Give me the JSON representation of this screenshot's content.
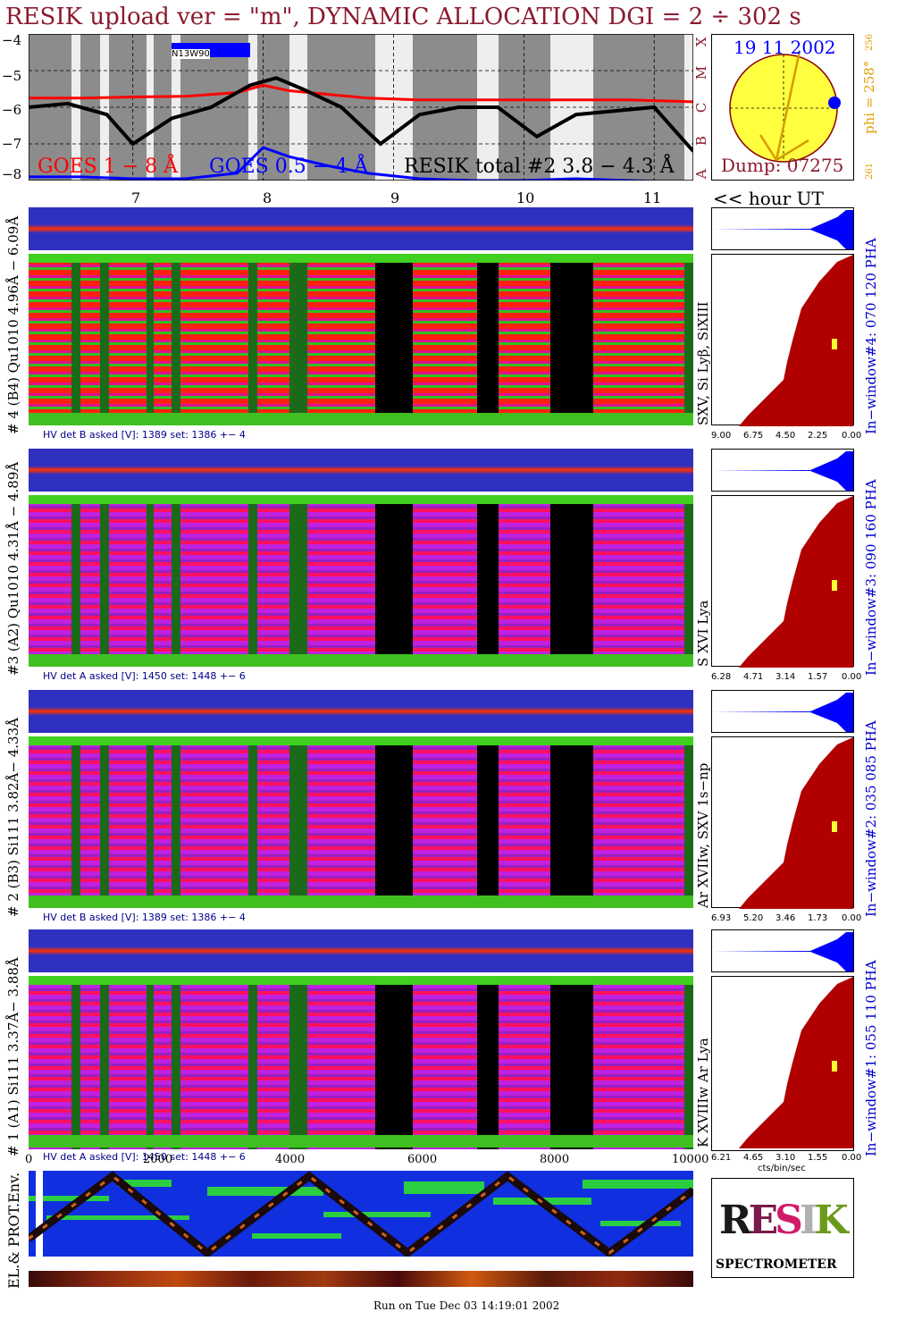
{
  "title": "RESIK upload ver = \"m\", DYNAMIC ALLOCATION  DGI =   2 ÷ 302 s",
  "goes": {
    "yticks": [
      "−4",
      "−5",
      "−6",
      "−7",
      "−8"
    ],
    "legend_goes1": "GOES 1 − 8 Å",
    "legend_goes05": "GOES 0.5 − 4 Å",
    "legend_resik": "RESIK total #2  3.8 − 4.3 Å",
    "noaa_label": "N13W90",
    "flare_classes": [
      "X",
      "M",
      "C",
      "B",
      "A"
    ],
    "hour_labels": [
      "7",
      "8",
      "9",
      "10",
      "11"
    ],
    "hour_ut": "<< hour UT"
  },
  "sun": {
    "date": "19 11 2002",
    "phi": "phi = 258°",
    "phi_top": "256",
    "phi_bottom": "261",
    "dump": "Dump: 07275"
  },
  "panels": [
    {
      "id": "4",
      "label": "# 4 (B4) Qu1010 4.96Å − 6.09Å",
      "lines": "SXV, Si Lyβ, SiXIII",
      "window": "In−window#4:  070 120 PHA",
      "hv": "HV det B asked [V]:  1389 set:  1386 +−   4",
      "pha_ticks": [
        "9.00",
        "6.75",
        "4.50",
        "2.25",
        "0.00"
      ]
    },
    {
      "id": "3",
      "label": "#3 (A2) Qu1010  4.31Å − 4.89Å",
      "lines": "S XVI Lya",
      "window": "In−window#3:  090 160 PHA",
      "hv": "HV det A asked [V]:  1450 set:  1448 +−   6",
      "pha_ticks": [
        "6.28",
        "4.71",
        "3.14",
        "1.57",
        "0.00"
      ]
    },
    {
      "id": "2",
      "label": "# 2 (B3) Si111  3.82Å− 4.33Å",
      "lines": "Ar XVIIw,  SXV 1s−np",
      "window": "In−window#2:  035 085 PHA",
      "hv": "HV det B asked [V]:  1389 set:  1386 +−   4",
      "pha_ticks": [
        "6.93",
        "5.20",
        "3.46",
        "1.73",
        "0.00"
      ]
    },
    {
      "id": "1",
      "label": "# 1 (A1) Si111  3.37Å− 3.88Å",
      "lines": "K XVIIIw  Ar Lya",
      "window": "In−window#1:  055 110 PHA",
      "hv": "HV det A asked [V]:  1450 set:  1448 +−   6",
      "pha_ticks": [
        "6.21",
        "4.65",
        "3.10",
        "1.55",
        "0.00"
      ]
    }
  ],
  "bottom": {
    "xticks": [
      "0",
      "2000",
      "4000",
      "6000",
      "8000",
      "10000"
    ],
    "cts_label": "cts/bin/sec",
    "env_label": "EL.& PROT.Env.",
    "logo_title": "SPECTROMETER",
    "logo_letters": "RESIK",
    "run_on": "Run on Tue Dec 03 14:19:01 2002"
  },
  "chart_data": {
    "type": "line",
    "title": "RESIK upload ver = \"m\", DYNAMIC ALLOCATION  DGI =   2 ÷ 302 s",
    "xlabel": "hour UT",
    "ylabel": "",
    "xlim": [
      6.2,
      11.3
    ],
    "ylim": [
      -8,
      -4
    ],
    "series": [
      {
        "name": "GOES 1 − 8 Å",
        "color": "#ff0000",
        "x": [
          6.2,
          6.6,
          7.0,
          7.4,
          7.8,
          8.0,
          8.2,
          8.5,
          8.8,
          9.2,
          9.6,
          10.0,
          10.4,
          10.8,
          11.3
        ],
        "y": [
          -5.75,
          -5.75,
          -5.72,
          -5.7,
          -5.6,
          -5.4,
          -5.55,
          -5.65,
          -5.75,
          -5.8,
          -5.8,
          -5.8,
          -5.8,
          -5.8,
          -5.85
        ]
      },
      {
        "name": "GOES 0.5 − 4 Å",
        "color": "#0000ff",
        "x": [
          6.2,
          6.6,
          7.0,
          7.4,
          7.8,
          8.0,
          8.2,
          8.5,
          8.8,
          9.2,
          9.6,
          10.0,
          10.4,
          10.8,
          11.3
        ],
        "y": [
          -7.9,
          -7.9,
          -7.95,
          -7.95,
          -7.8,
          -7.1,
          -7.35,
          -7.6,
          -7.8,
          -7.95,
          -8.0,
          -8.0,
          -7.95,
          -8.0,
          -8.05
        ]
      },
      {
        "name": "RESIK total #2  3.8 − 4.3 Å",
        "color": "#000000",
        "x": [
          6.2,
          6.5,
          6.8,
          7.0,
          7.3,
          7.6,
          7.9,
          8.1,
          8.3,
          8.6,
          8.9,
          9.2,
          9.5,
          9.8,
          10.1,
          10.4,
          10.7,
          11.0,
          11.3
        ],
        "y": [
          -6.0,
          -5.9,
          -6.2,
          -7.0,
          -6.3,
          -6.0,
          -5.4,
          -5.2,
          -5.5,
          -6.0,
          -7.0,
          -6.2,
          -6.0,
          -6.0,
          -6.8,
          -6.2,
          -6.1,
          -6.0,
          -7.2
        ]
      }
    ]
  }
}
